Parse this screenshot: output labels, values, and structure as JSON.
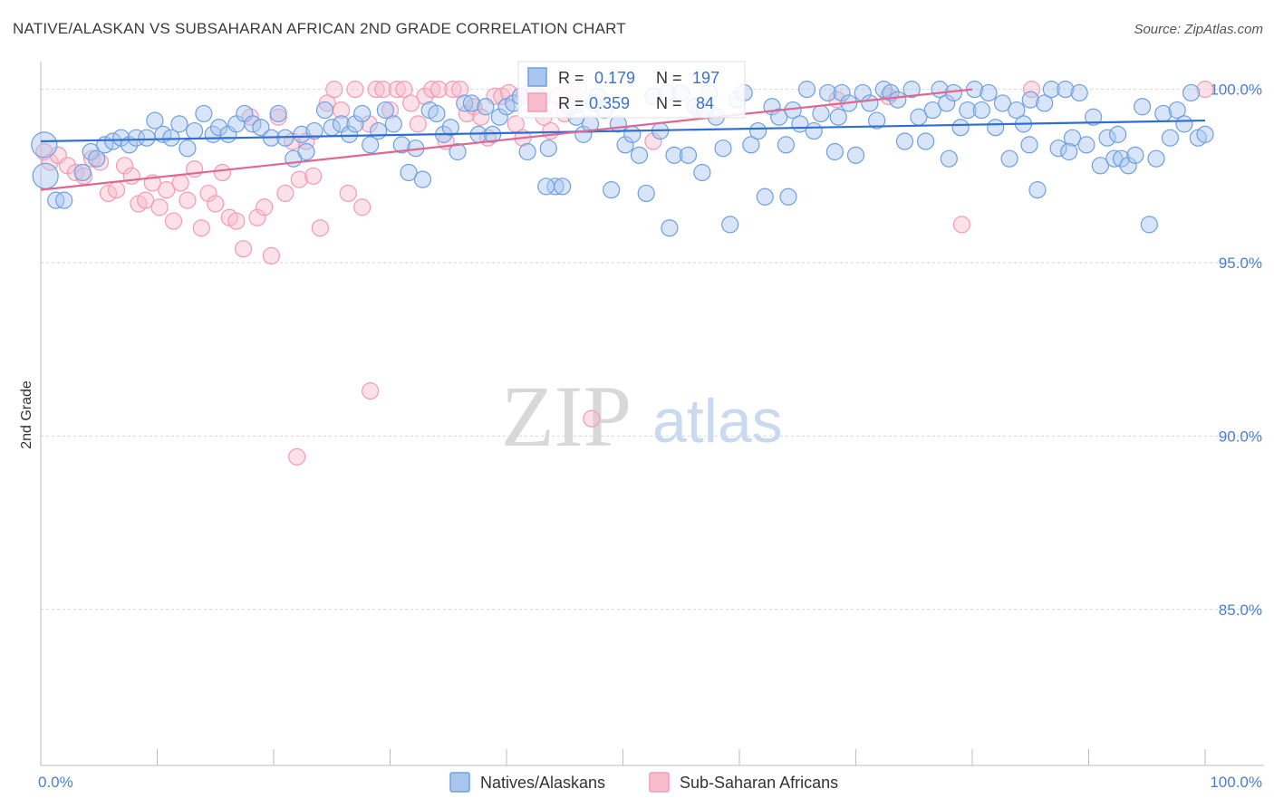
{
  "title": "NATIVE/ALASKAN VS SUBSAHARAN AFRICAN 2ND GRADE CORRELATION CHART",
  "source": "Source: ZipAtlas.com",
  "watermark": {
    "zip": "ZIP",
    "atlas": "atlas"
  },
  "colors": {
    "blue": "#6f9fe0",
    "blue_line": "#2f6fd0",
    "pink": "#f29bb5",
    "pink_line": "#e06890",
    "tick": "#4a7fd0"
  },
  "chart_data": {
    "type": "scatter",
    "xlabel": "",
    "ylabel": "2nd Grade",
    "xlim": [
      0,
      100
    ],
    "ylim": [
      80.5,
      100.8
    ],
    "x_ticks": [
      {
        "value": 0,
        "label": "0.0%"
      },
      {
        "value": 100,
        "label": "100.0%"
      }
    ],
    "y_ticks": [
      {
        "value": 100,
        "label": "100.0%"
      },
      {
        "value": 95,
        "label": "95.0%"
      },
      {
        "value": 90,
        "label": "90.0%"
      },
      {
        "value": 85,
        "label": "85.0%"
      }
    ],
    "grid": true,
    "legend_position": "bottom",
    "stats": [
      {
        "r_label": "R =",
        "r": "0.179",
        "n_label": "N =",
        "n": "197"
      },
      {
        "r_label": "R =",
        "r": "0.359",
        "n_label": "N =",
        "n": "84"
      }
    ],
    "series": [
      {
        "name": "Natives/Alaskans",
        "color": "#6f9fe0",
        "trend": {
          "x": [
            0,
            100
          ],
          "y": [
            98.5,
            99.1
          ]
        },
        "points": [
          [
            0.3,
            98.4
          ],
          [
            0.4,
            97.5
          ],
          [
            1.3,
            96.8
          ],
          [
            2.0,
            96.8
          ],
          [
            3.6,
            97.6
          ],
          [
            4.3,
            98.2
          ],
          [
            4.8,
            98.0
          ],
          [
            5.5,
            98.4
          ],
          [
            6.2,
            98.5
          ],
          [
            6.9,
            98.6
          ],
          [
            7.6,
            98.4
          ],
          [
            8.2,
            98.6
          ],
          [
            9.1,
            98.6
          ],
          [
            9.8,
            99.1
          ],
          [
            10.5,
            98.7
          ],
          [
            11.2,
            98.6
          ],
          [
            11.9,
            99.0
          ],
          [
            12.6,
            98.3
          ],
          [
            13.2,
            98.8
          ],
          [
            14.0,
            99.3
          ],
          [
            14.8,
            98.7
          ],
          [
            15.3,
            98.9
          ],
          [
            16.1,
            98.7
          ],
          [
            16.8,
            99.0
          ],
          [
            17.5,
            99.3
          ],
          [
            18.2,
            99.0
          ],
          [
            18.9,
            98.9
          ],
          [
            19.8,
            98.6
          ],
          [
            20.4,
            99.3
          ],
          [
            21.0,
            98.6
          ],
          [
            21.7,
            98.0
          ],
          [
            22.4,
            98.7
          ],
          [
            22.8,
            98.2
          ],
          [
            23.5,
            98.8
          ],
          [
            24.4,
            99.4
          ],
          [
            25.0,
            98.9
          ],
          [
            25.8,
            99.0
          ],
          [
            26.5,
            98.7
          ],
          [
            27.0,
            99.0
          ],
          [
            27.6,
            99.3
          ],
          [
            28.3,
            98.4
          ],
          [
            29.0,
            98.8
          ],
          [
            29.6,
            99.4
          ],
          [
            30.3,
            99.0
          ],
          [
            31.0,
            98.4
          ],
          [
            31.6,
            97.6
          ],
          [
            32.2,
            98.3
          ],
          [
            32.8,
            97.4
          ],
          [
            33.4,
            99.4
          ],
          [
            34.0,
            99.3
          ],
          [
            34.6,
            98.7
          ],
          [
            35.2,
            98.9
          ],
          [
            35.8,
            98.2
          ],
          [
            36.4,
            99.6
          ],
          [
            37.0,
            99.6
          ],
          [
            37.6,
            98.7
          ],
          [
            38.2,
            99.5
          ],
          [
            38.8,
            98.7
          ],
          [
            39.4,
            99.2
          ],
          [
            40.0,
            99.5
          ],
          [
            40.6,
            99.6
          ],
          [
            41.2,
            99.8
          ],
          [
            41.8,
            98.2
          ],
          [
            42.4,
            99.9
          ],
          [
            43.0,
            99.7
          ],
          [
            43.6,
            98.3
          ],
          [
            44.2,
            97.2
          ],
          [
            44.8,
            97.2
          ],
          [
            45.4,
            99.5
          ],
          [
            46.0,
            99.2
          ],
          [
            46.6,
            98.7
          ],
          [
            47.2,
            99.0
          ],
          [
            47.8,
            99.8
          ],
          [
            48.4,
            99.4
          ],
          [
            49.0,
            97.1
          ],
          [
            49.6,
            99.0
          ],
          [
            50.2,
            98.4
          ],
          [
            50.8,
            98.7
          ],
          [
            51.4,
            98.1
          ],
          [
            52.0,
            97.0
          ],
          [
            52.6,
            99.8
          ],
          [
            53.2,
            98.8
          ],
          [
            53.8,
            99.9
          ],
          [
            54.4,
            98.1
          ],
          [
            55.0,
            99.9
          ],
          [
            55.6,
            98.1
          ],
          [
            56.2,
            99.5
          ],
          [
            56.8,
            97.6
          ],
          [
            57.4,
            99.9
          ],
          [
            58.0,
            99.2
          ],
          [
            58.6,
            98.3
          ],
          [
            59.2,
            96.1
          ],
          [
            59.8,
            99.7
          ],
          [
            60.4,
            99.9
          ],
          [
            61.0,
            98.4
          ],
          [
            61.6,
            98.8
          ],
          [
            62.2,
            96.9
          ],
          [
            62.8,
            99.5
          ],
          [
            63.4,
            99.2
          ],
          [
            64.0,
            98.4
          ],
          [
            64.6,
            99.4
          ],
          [
            65.2,
            99.0
          ],
          [
            65.8,
            100.0
          ],
          [
            66.4,
            98.8
          ],
          [
            67.0,
            99.3
          ],
          [
            67.6,
            99.9
          ],
          [
            68.2,
            98.2
          ],
          [
            68.8,
            99.9
          ],
          [
            69.4,
            99.6
          ],
          [
            70.0,
            98.1
          ],
          [
            70.6,
            99.9
          ],
          [
            71.2,
            99.6
          ],
          [
            71.8,
            99.1
          ],
          [
            72.4,
            100.0
          ],
          [
            73.0,
            99.9
          ],
          [
            73.6,
            99.7
          ],
          [
            74.2,
            98.5
          ],
          [
            74.8,
            100.0
          ],
          [
            75.4,
            99.2
          ],
          [
            76.0,
            98.5
          ],
          [
            76.6,
            99.4
          ],
          [
            77.2,
            100.0
          ],
          [
            77.8,
            99.6
          ],
          [
            78.4,
            99.9
          ],
          [
            79.0,
            98.9
          ],
          [
            79.6,
            99.4
          ],
          [
            80.2,
            100.0
          ],
          [
            80.8,
            99.4
          ],
          [
            81.4,
            99.9
          ],
          [
            82.0,
            98.9
          ],
          [
            82.6,
            99.6
          ],
          [
            83.2,
            98.0
          ],
          [
            83.8,
            99.4
          ],
          [
            84.4,
            99.0
          ],
          [
            85.0,
            99.7
          ],
          [
            85.6,
            97.1
          ],
          [
            86.2,
            99.6
          ],
          [
            86.8,
            100.0
          ],
          [
            87.4,
            98.3
          ],
          [
            88.0,
            100.0
          ],
          [
            88.6,
            98.6
          ],
          [
            89.2,
            99.9
          ],
          [
            89.8,
            98.4
          ],
          [
            90.4,
            99.2
          ],
          [
            91.0,
            97.8
          ],
          [
            91.6,
            98.6
          ],
          [
            92.2,
            98.0
          ],
          [
            92.8,
            98.0
          ],
          [
            93.4,
            97.8
          ],
          [
            94.0,
            98.1
          ],
          [
            94.6,
            99.5
          ],
          [
            95.2,
            96.1
          ],
          [
            95.8,
            98.0
          ],
          [
            96.4,
            99.3
          ],
          [
            97.0,
            98.6
          ],
          [
            97.6,
            99.4
          ],
          [
            98.2,
            99.0
          ],
          [
            98.8,
            99.9
          ],
          [
            99.4,
            98.6
          ],
          [
            100.0,
            98.7
          ],
          [
            43.4,
            97.2
          ],
          [
            54.0,
            96.0
          ],
          [
            64.2,
            96.9
          ],
          [
            78.0,
            98.0
          ],
          [
            84.9,
            98.4
          ],
          [
            92.5,
            98.7
          ],
          [
            88.3,
            98.2
          ],
          [
            68.5,
            99.2
          ],
          [
            57.0,
            99.4
          ],
          [
            47.5,
            99.6
          ]
        ]
      },
      {
        "name": "Sub-Saharan Africans",
        "color": "#f29bb5",
        "trend": {
          "x": [
            0,
            80
          ],
          "y": [
            97.1,
            100.0
          ]
        },
        "points": [
          [
            0.3,
            98.2
          ],
          [
            0.8,
            97.9
          ],
          [
            1.5,
            98.1
          ],
          [
            2.3,
            97.8
          ],
          [
            3.0,
            97.6
          ],
          [
            3.7,
            97.5
          ],
          [
            4.4,
            98.0
          ],
          [
            5.1,
            97.9
          ],
          [
            5.8,
            97.0
          ],
          [
            6.5,
            97.1
          ],
          [
            7.2,
            97.8
          ],
          [
            7.8,
            97.5
          ],
          [
            8.4,
            96.7
          ],
          [
            9.0,
            96.8
          ],
          [
            9.6,
            97.3
          ],
          [
            10.2,
            96.6
          ],
          [
            10.8,
            97.1
          ],
          [
            11.4,
            96.2
          ],
          [
            12.0,
            97.3
          ],
          [
            12.6,
            96.8
          ],
          [
            13.2,
            97.7
          ],
          [
            13.8,
            96.0
          ],
          [
            14.4,
            97.0
          ],
          [
            15.0,
            96.7
          ],
          [
            15.6,
            97.6
          ],
          [
            16.2,
            96.3
          ],
          [
            16.8,
            96.2
          ],
          [
            17.4,
            95.4
          ],
          [
            18.0,
            99.2
          ],
          [
            18.6,
            96.3
          ],
          [
            19.2,
            96.6
          ],
          [
            19.8,
            95.2
          ],
          [
            20.4,
            99.2
          ],
          [
            21.0,
            97.0
          ],
          [
            21.6,
            98.5
          ],
          [
            22.2,
            97.4
          ],
          [
            22.8,
            98.5
          ],
          [
            23.4,
            97.5
          ],
          [
            24.0,
            96.0
          ],
          [
            24.6,
            99.6
          ],
          [
            25.2,
            100.0
          ],
          [
            25.8,
            99.4
          ],
          [
            26.4,
            97.0
          ],
          [
            27.0,
            100.0
          ],
          [
            27.6,
            96.6
          ],
          [
            28.2,
            99.0
          ],
          [
            28.8,
            100.0
          ],
          [
            29.4,
            100.0
          ],
          [
            30.0,
            99.4
          ],
          [
            30.6,
            100.0
          ],
          [
            31.2,
            100.0
          ],
          [
            31.8,
            99.6
          ],
          [
            32.4,
            99.0
          ],
          [
            33.0,
            99.8
          ],
          [
            33.6,
            100.0
          ],
          [
            34.2,
            100.0
          ],
          [
            34.8,
            98.5
          ],
          [
            35.4,
            100.0
          ],
          [
            36.0,
            100.0
          ],
          [
            36.6,
            99.3
          ],
          [
            37.2,
            99.5
          ],
          [
            37.8,
            99.2
          ],
          [
            38.4,
            98.6
          ],
          [
            39.0,
            99.8
          ],
          [
            39.6,
            99.8
          ],
          [
            40.2,
            99.9
          ],
          [
            40.8,
            99.0
          ],
          [
            41.4,
            98.6
          ],
          [
            42.0,
            99.9
          ],
          [
            42.6,
            99.8
          ],
          [
            43.2,
            99.2
          ],
          [
            43.8,
            98.8
          ],
          [
            44.4,
            99.8
          ],
          [
            45.0,
            99.3
          ],
          [
            46.2,
            100.0
          ],
          [
            52.6,
            98.5
          ],
          [
            56.6,
            99.4
          ],
          [
            68.4,
            99.7
          ],
          [
            72.8,
            99.8
          ],
          [
            79.1,
            96.1
          ],
          [
            85.1,
            100.0
          ],
          [
            28.3,
            91.3
          ],
          [
            22.0,
            89.4
          ],
          [
            47.3,
            90.5
          ],
          [
            100.0,
            100.0
          ]
        ]
      }
    ]
  }
}
